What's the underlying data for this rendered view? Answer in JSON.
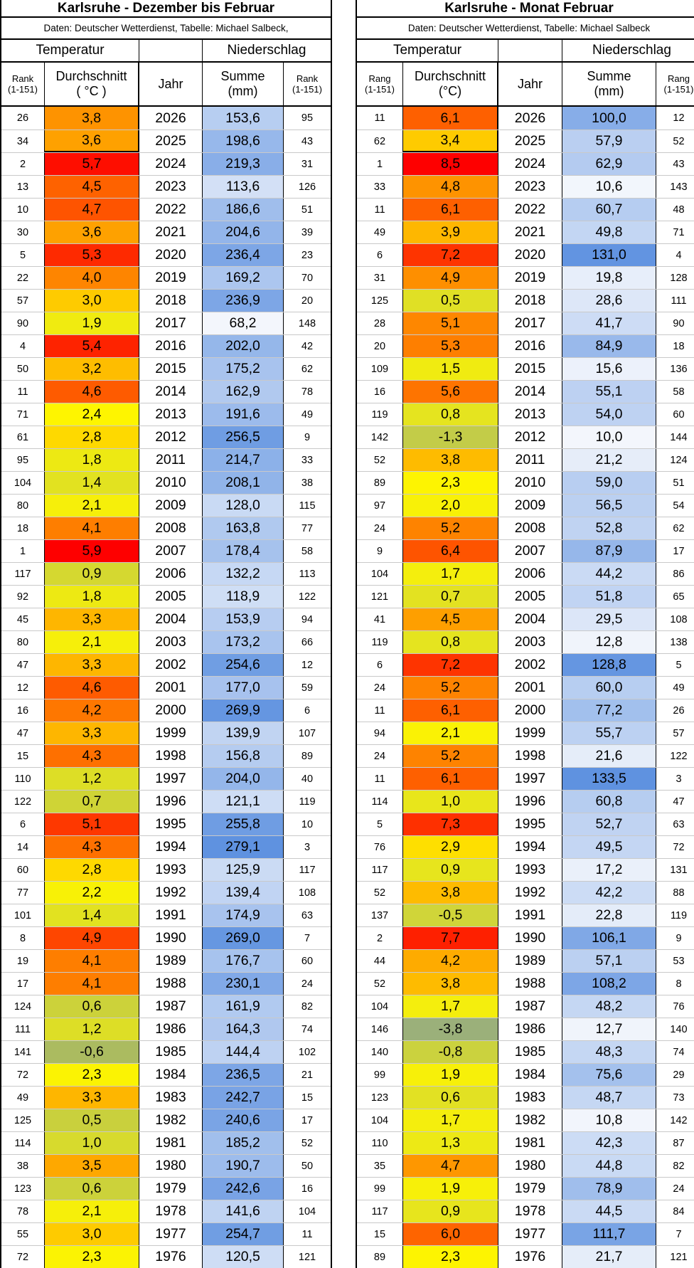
{
  "tables": {
    "left": {
      "title": "Karlsruhe - Dezember bis Februar",
      "subtitle": "Daten: Deutscher Wetterdienst, Tabelle: Michael Salbeck,",
      "groups": {
        "temperature": "Temperatur",
        "middle": "",
        "precipitation": "Niederschlag"
      },
      "columns": {
        "rank1_l1": "Rank",
        "rank1_l2": "(1-151)",
        "avg_l1": "Durchschnitt",
        "avg_l2": "( °C )",
        "year": "Jahr",
        "sum_l1": "Summe",
        "sum_l2": "(mm)",
        "rank2_l1": "Rank",
        "rank2_l2": "(1-151)"
      },
      "temp_scale": {
        "min": -0.6,
        "mid": 2.4,
        "max": 5.9,
        "low_color": "#ABBB60",
        "mid_color": "#FEF500",
        "high_color": "#FE0000"
      },
      "precip_scale": {
        "min": 68.2,
        "max": 279.1,
        "low_color": "#F3F6FC",
        "high_color": "#5F92E0"
      },
      "rows": [
        [
          "26",
          "3,8",
          "2026",
          "153,6",
          "95"
        ],
        [
          "34",
          "3,6",
          "2025",
          "198,6",
          "43"
        ],
        [
          "2",
          "5,7",
          "2024",
          "219,3",
          "31"
        ],
        [
          "13",
          "4,5",
          "2023",
          "113,6",
          "126"
        ],
        [
          "10",
          "4,7",
          "2022",
          "186,6",
          "51"
        ],
        [
          "30",
          "3,6",
          "2021",
          "204,6",
          "39"
        ],
        [
          "5",
          "5,3",
          "2020",
          "236,4",
          "23"
        ],
        [
          "22",
          "4,0",
          "2019",
          "169,2",
          "70"
        ],
        [
          "57",
          "3,0",
          "2018",
          "236,9",
          "20"
        ],
        [
          "90",
          "1,9",
          "2017",
          "68,2",
          "148"
        ],
        [
          "4",
          "5,4",
          "2016",
          "202,0",
          "42"
        ],
        [
          "50",
          "3,2",
          "2015",
          "175,2",
          "62"
        ],
        [
          "11",
          "4,6",
          "2014",
          "162,9",
          "78"
        ],
        [
          "71",
          "2,4",
          "2013",
          "191,6",
          "49"
        ],
        [
          "61",
          "2,8",
          "2012",
          "256,5",
          "9"
        ],
        [
          "95",
          "1,8",
          "2011",
          "214,7",
          "33"
        ],
        [
          "104",
          "1,4",
          "2010",
          "208,1",
          "38"
        ],
        [
          "80",
          "2,1",
          "2009",
          "128,0",
          "115"
        ],
        [
          "18",
          "4,1",
          "2008",
          "163,8",
          "77"
        ],
        [
          "1",
          "5,9",
          "2007",
          "178,4",
          "58"
        ],
        [
          "117",
          "0,9",
          "2006",
          "132,2",
          "113"
        ],
        [
          "92",
          "1,8",
          "2005",
          "118,9",
          "122"
        ],
        [
          "45",
          "3,3",
          "2004",
          "153,9",
          "94"
        ],
        [
          "80",
          "2,1",
          "2003",
          "173,2",
          "66"
        ],
        [
          "47",
          "3,3",
          "2002",
          "254,6",
          "12"
        ],
        [
          "12",
          "4,6",
          "2001",
          "177,0",
          "59"
        ],
        [
          "16",
          "4,2",
          "2000",
          "269,9",
          "6"
        ],
        [
          "47",
          "3,3",
          "1999",
          "139,9",
          "107"
        ],
        [
          "15",
          "4,3",
          "1998",
          "156,8",
          "89"
        ],
        [
          "110",
          "1,2",
          "1997",
          "204,0",
          "40"
        ],
        [
          "122",
          "0,7",
          "1996",
          "121,1",
          "119"
        ],
        [
          "6",
          "5,1",
          "1995",
          "255,8",
          "10"
        ],
        [
          "14",
          "4,3",
          "1994",
          "279,1",
          "3"
        ],
        [
          "60",
          "2,8",
          "1993",
          "125,9",
          "117"
        ],
        [
          "77",
          "2,2",
          "1992",
          "139,4",
          "108"
        ],
        [
          "101",
          "1,4",
          "1991",
          "174,9",
          "63"
        ],
        [
          "8",
          "4,9",
          "1990",
          "269,0",
          "7"
        ],
        [
          "19",
          "4,1",
          "1989",
          "176,7",
          "60"
        ],
        [
          "17",
          "4,1",
          "1988",
          "230,1",
          "24"
        ],
        [
          "124",
          "0,6",
          "1987",
          "161,9",
          "82"
        ],
        [
          "111",
          "1,2",
          "1986",
          "164,3",
          "74"
        ],
        [
          "141",
          "-0,6",
          "1985",
          "144,4",
          "102"
        ],
        [
          "72",
          "2,3",
          "1984",
          "236,5",
          "21"
        ],
        [
          "49",
          "3,3",
          "1983",
          "242,7",
          "15"
        ],
        [
          "125",
          "0,5",
          "1982",
          "240,6",
          "17"
        ],
        [
          "114",
          "1,0",
          "1981",
          "185,2",
          "52"
        ],
        [
          "38",
          "3,5",
          "1980",
          "190,7",
          "50"
        ],
        [
          "123",
          "0,6",
          "1979",
          "242,6",
          "16"
        ],
        [
          "78",
          "2,1",
          "1978",
          "141,6",
          "104"
        ],
        [
          "55",
          "3,0",
          "1977",
          "254,7",
          "11"
        ],
        [
          "72",
          "2,3",
          "1976",
          "120,5",
          "121"
        ]
      ]
    },
    "right": {
      "title": "Karlsruhe - Monat Februar",
      "subtitle": "Daten: Deutscher Wetterdienst, Tabelle: Michael Salbeck",
      "groups": {
        "temperature": "Temperatur",
        "middle": "",
        "precipitation": "Niederschlag"
      },
      "columns": {
        "rank1_l1": "Rang",
        "rank1_l2": "(1-151)",
        "avg_l1": "Durchschnitt",
        "avg_l2": "(°C)",
        "year": "Jahr",
        "sum_l1": "Summe",
        "sum_l2": "(mm)",
        "rank2_l1": "Rang",
        "rank2_l2": "(1-151)"
      },
      "temp_scale": {
        "min": -3.8,
        "mid": 2.35,
        "max": 8.5,
        "low_color": "#9BB07A",
        "mid_color": "#FEF500",
        "high_color": "#FE0000"
      },
      "precip_scale": {
        "min": 10.0,
        "max": 133.5,
        "low_color": "#F3F6FC",
        "high_color": "#5F92E0"
      },
      "rows": [
        [
          "11",
          "6,1",
          "2026",
          "100,0",
          "12"
        ],
        [
          "62",
          "3,4",
          "2025",
          "57,9",
          "52"
        ],
        [
          "1",
          "8,5",
          "2024",
          "62,9",
          "43"
        ],
        [
          "33",
          "4,8",
          "2023",
          "10,6",
          "143"
        ],
        [
          "11",
          "6,1",
          "2022",
          "60,7",
          "48"
        ],
        [
          "49",
          "3,9",
          "2021",
          "49,8",
          "71"
        ],
        [
          "6",
          "7,2",
          "2020",
          "131,0",
          "4"
        ],
        [
          "31",
          "4,9",
          "2019",
          "19,8",
          "128"
        ],
        [
          "125",
          "0,5",
          "2018",
          "28,6",
          "111"
        ],
        [
          "28",
          "5,1",
          "2017",
          "41,7",
          "90"
        ],
        [
          "20",
          "5,3",
          "2016",
          "84,9",
          "18"
        ],
        [
          "109",
          "1,5",
          "2015",
          "15,6",
          "136"
        ],
        [
          "16",
          "5,6",
          "2014",
          "55,1",
          "58"
        ],
        [
          "119",
          "0,8",
          "2013",
          "54,0",
          "60"
        ],
        [
          "142",
          "-1,3",
          "2012",
          "10,0",
          "144"
        ],
        [
          "52",
          "3,8",
          "2011",
          "21,2",
          "124"
        ],
        [
          "89",
          "2,3",
          "2010",
          "59,0",
          "51"
        ],
        [
          "97",
          "2,0",
          "2009",
          "56,5",
          "54"
        ],
        [
          "24",
          "5,2",
          "2008",
          "52,8",
          "62"
        ],
        [
          "9",
          "6,4",
          "2007",
          "87,9",
          "17"
        ],
        [
          "104",
          "1,7",
          "2006",
          "44,2",
          "86"
        ],
        [
          "121",
          "0,7",
          "2005",
          "51,8",
          "65"
        ],
        [
          "41",
          "4,5",
          "2004",
          "29,5",
          "108"
        ],
        [
          "119",
          "0,8",
          "2003",
          "12,8",
          "138"
        ],
        [
          "6",
          "7,2",
          "2002",
          "128,8",
          "5"
        ],
        [
          "24",
          "5,2",
          "2001",
          "60,0",
          "49"
        ],
        [
          "11",
          "6,1",
          "2000",
          "77,2",
          "26"
        ],
        [
          "94",
          "2,1",
          "1999",
          "55,7",
          "57"
        ],
        [
          "24",
          "5,2",
          "1998",
          "21,6",
          "122"
        ],
        [
          "11",
          "6,1",
          "1997",
          "133,5",
          "3"
        ],
        [
          "114",
          "1,0",
          "1996",
          "60,8",
          "47"
        ],
        [
          "5",
          "7,3",
          "1995",
          "52,7",
          "63"
        ],
        [
          "76",
          "2,9",
          "1994",
          "49,5",
          "72"
        ],
        [
          "117",
          "0,9",
          "1993",
          "17,2",
          "131"
        ],
        [
          "52",
          "3,8",
          "1992",
          "42,2",
          "88"
        ],
        [
          "137",
          "-0,5",
          "1991",
          "22,8",
          "119"
        ],
        [
          "2",
          "7,7",
          "1990",
          "106,1",
          "9"
        ],
        [
          "44",
          "4,2",
          "1989",
          "57,1",
          "53"
        ],
        [
          "52",
          "3,8",
          "1988",
          "108,2",
          "8"
        ],
        [
          "104",
          "1,7",
          "1987",
          "48,2",
          "76"
        ],
        [
          "146",
          "-3,8",
          "1986",
          "12,7",
          "140"
        ],
        [
          "140",
          "-0,8",
          "1985",
          "48,3",
          "74"
        ],
        [
          "99",
          "1,9",
          "1984",
          "75,6",
          "29"
        ],
        [
          "123",
          "0,6",
          "1983",
          "48,7",
          "73"
        ],
        [
          "104",
          "1,7",
          "1982",
          "10,8",
          "142"
        ],
        [
          "110",
          "1,3",
          "1981",
          "42,3",
          "87"
        ],
        [
          "35",
          "4,7",
          "1980",
          "44,8",
          "82"
        ],
        [
          "99",
          "1,9",
          "1979",
          "78,9",
          "24"
        ],
        [
          "117",
          "0,9",
          "1978",
          "44,5",
          "84"
        ],
        [
          "15",
          "6,0",
          "1977",
          "111,7",
          "7"
        ],
        [
          "89",
          "2,3",
          "1976",
          "21,7",
          "121"
        ]
      ]
    }
  }
}
